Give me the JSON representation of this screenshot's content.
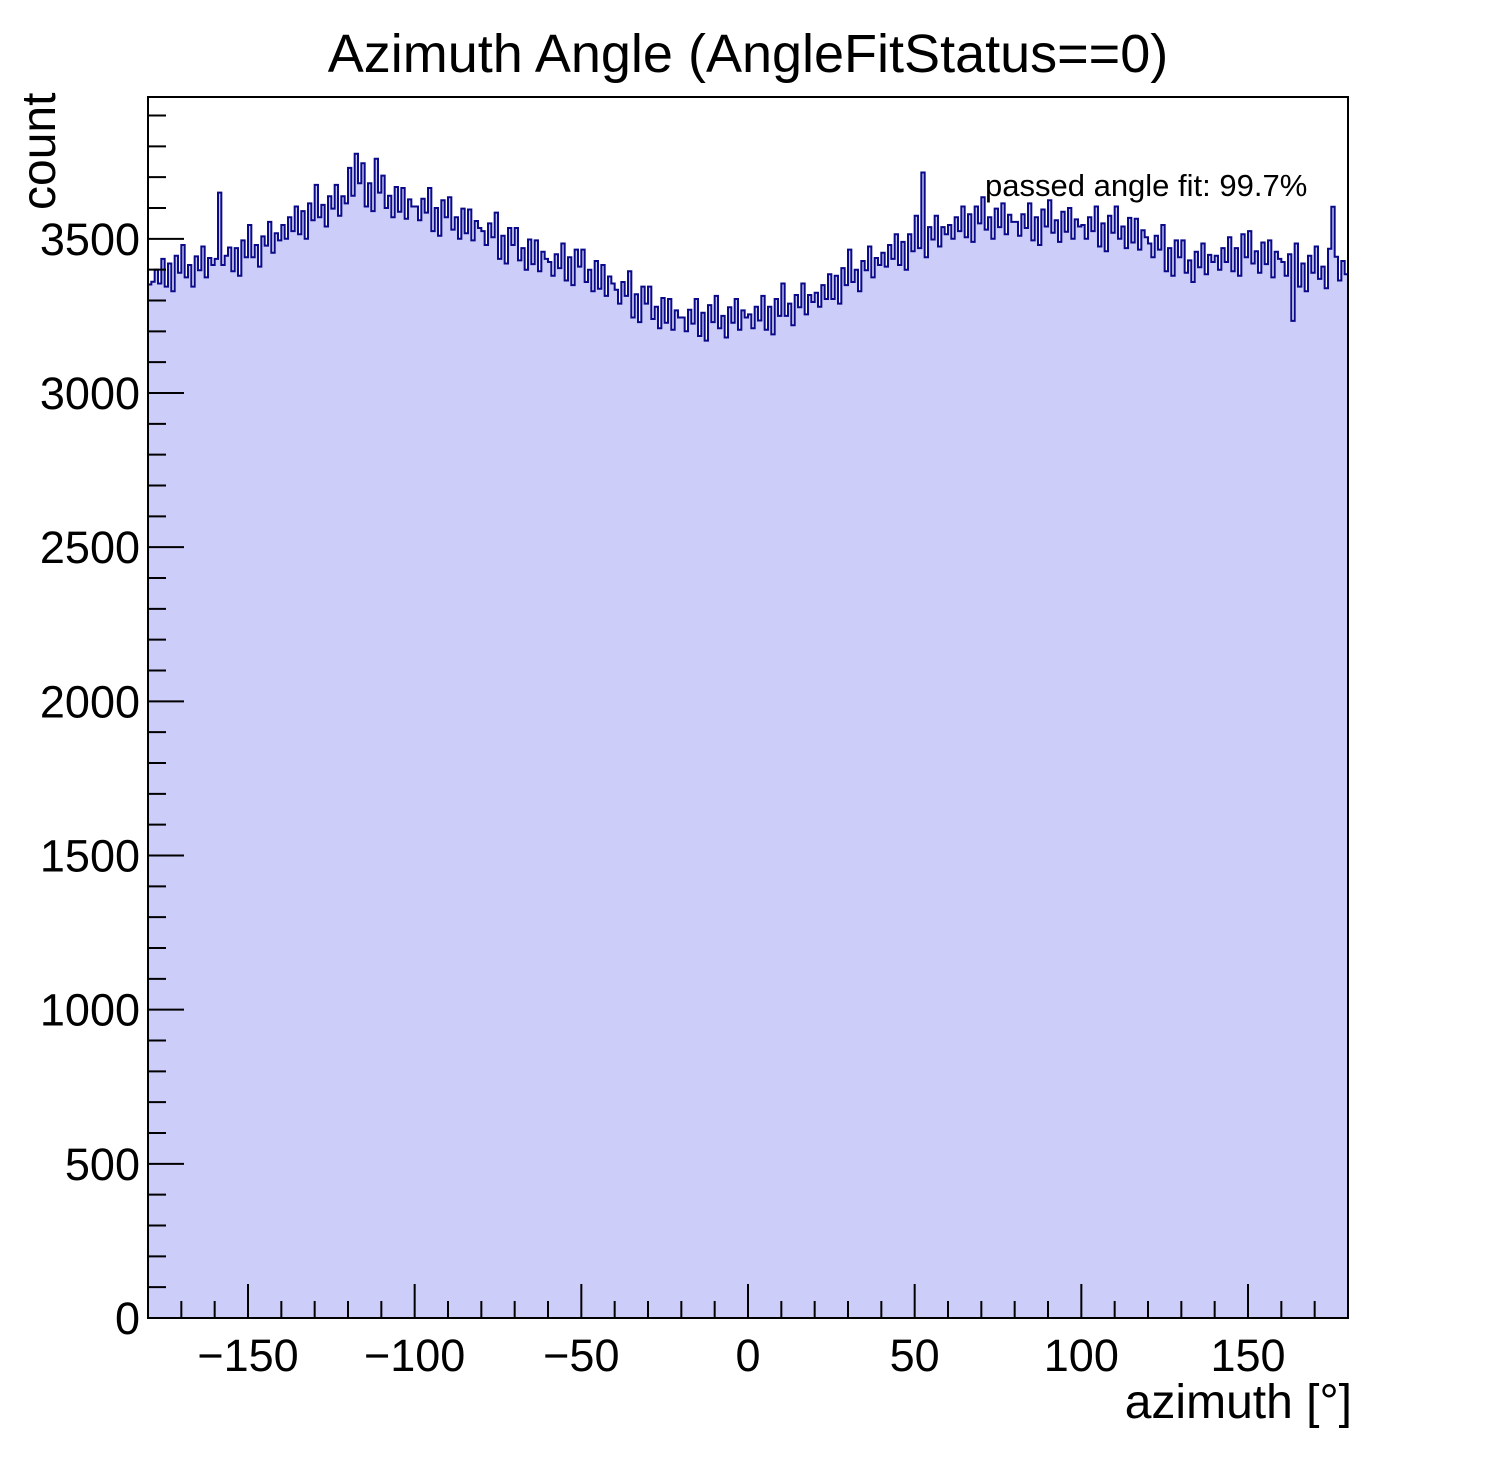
{
  "title": "Azimuth Angle (AngleFitStatus==0)",
  "annotation": "passed angle fit: 99.7%",
  "colors": {
    "fill": "#cdcdfa",
    "line": "#0a0a8a",
    "frame": "#000000",
    "text": "#000000"
  },
  "chart_data": {
    "type": "bar",
    "title": "Azimuth Angle (AngleFitStatus==0)",
    "xlabel": "azimuth [°]",
    "ylabel": "count",
    "annotation": "passed angle fit: 99.7%",
    "x_start": -180,
    "x_end": 180,
    "bin_width": 1,
    "ylim": [
      0,
      3960
    ],
    "y_major_ticks": [
      0,
      500,
      1000,
      1500,
      2000,
      2500,
      3000,
      3500
    ],
    "y_minor_step": 100,
    "x_major_ticks": [
      -150,
      -100,
      -50,
      0,
      50,
      100,
      150
    ],
    "x_minor_step": 10,
    "grid": false,
    "legend": false,
    "values": [
      3352,
      3361,
      3400,
      3355,
      3435,
      3345,
      3420,
      3330,
      3445,
      3390,
      3480,
      3375,
      3415,
      3345,
      3443,
      3398,
      3475,
      3375,
      3438,
      3415,
      3435,
      3650,
      3415,
      3445,
      3472,
      3395,
      3470,
      3380,
      3495,
      3440,
      3545,
      3440,
      3480,
      3410,
      3508,
      3478,
      3555,
      3455,
      3518,
      3495,
      3545,
      3500,
      3570,
      3525,
      3605,
      3515,
      3590,
      3500,
      3615,
      3560,
      3675,
      3570,
      3610,
      3540,
      3638,
      3598,
      3675,
      3575,
      3638,
      3615,
      3730,
      3640,
      3776,
      3680,
      3745,
      3605,
      3680,
      3590,
      3760,
      3650,
      3705,
      3600,
      3640,
      3570,
      3668,
      3588,
      3665,
      3565,
      3628,
      3605,
      3605,
      3560,
      3630,
      3585,
      3665,
      3525,
      3600,
      3510,
      3625,
      3570,
      3635,
      3530,
      3570,
      3500,
      3598,
      3518,
      3595,
      3495,
      3558,
      3535,
      3525,
      3480,
      3550,
      3505,
      3585,
      3435,
      3510,
      3420,
      3535,
      3480,
      3535,
      3430,
      3470,
      3400,
      3498,
      3418,
      3495,
      3395,
      3458,
      3435,
      3425,
      3380,
      3450,
      3405,
      3485,
      3365,
      3440,
      3350,
      3465,
      3410,
      3465,
      3360,
      3400,
      3330,
      3428,
      3338,
      3415,
      3315,
      3378,
      3355,
      3335,
      3290,
      3360,
      3315,
      3395,
      3245,
      3320,
      3230,
      3345,
      3290,
      3345,
      3240,
      3280,
      3210,
      3308,
      3228,
      3305,
      3205,
      3268,
      3245,
      3245,
      3200,
      3270,
      3225,
      3305,
      3185,
      3260,
      3170,
      3285,
      3230,
      3315,
      3210,
      3250,
      3180,
      3278,
      3228,
      3305,
      3205,
      3268,
      3245,
      3255,
      3210,
      3280,
      3235,
      3315,
      3205,
      3280,
      3190,
      3305,
      3250,
      3355,
      3250,
      3290,
      3220,
      3318,
      3278,
      3355,
      3255,
      3318,
      3295,
      3325,
      3280,
      3350,
      3305,
      3385,
      3305,
      3380,
      3290,
      3405,
      3350,
      3465,
      3360,
      3400,
      3330,
      3428,
      3398,
      3475,
      3375,
      3438,
      3415,
      3455,
      3410,
      3480,
      3435,
      3515,
      3415,
      3490,
      3400,
      3515,
      3460,
      3575,
      3470,
      3715,
      3440,
      3538,
      3498,
      3575,
      3475,
      3538,
      3515,
      3545,
      3500,
      3570,
      3525,
      3605,
      3505,
      3580,
      3490,
      3605,
      3550,
      3635,
      3530,
      3570,
      3500,
      3598,
      3538,
      3615,
      3515,
      3578,
      3555,
      3555,
      3510,
      3580,
      3535,
      3615,
      3495,
      3570,
      3480,
      3595,
      3540,
      3625,
      3520,
      3560,
      3490,
      3588,
      3523,
      3600,
      3500,
      3563,
      3540,
      3545,
      3500,
      3570,
      3525,
      3605,
      3475,
      3550,
      3460,
      3575,
      3520,
      3605,
      3500,
      3540,
      3470,
      3568,
      3488,
      3565,
      3465,
      3528,
      3505,
      3485,
      3440,
      3510,
      3465,
      3545,
      3395,
      3470,
      3380,
      3495,
      3440,
      3495,
      3390,
      3430,
      3360,
      3458,
      3408,
      3485,
      3385,
      3448,
      3425,
      3445,
      3400,
      3470,
      3425,
      3505,
      3395,
      3470,
      3380,
      3515,
      3440,
      3525,
      3420,
      3460,
      3390,
      3488,
      3418,
      3495,
      3375,
      3458,
      3435,
      3425,
      3380,
      3450,
      3234,
      3485,
      3345,
      3420,
      3330,
      3445,
      3390,
      3475,
      3370,
      3410,
      3340,
      3468,
      3604,
      3442,
      3365,
      3428,
      3385
    ]
  }
}
